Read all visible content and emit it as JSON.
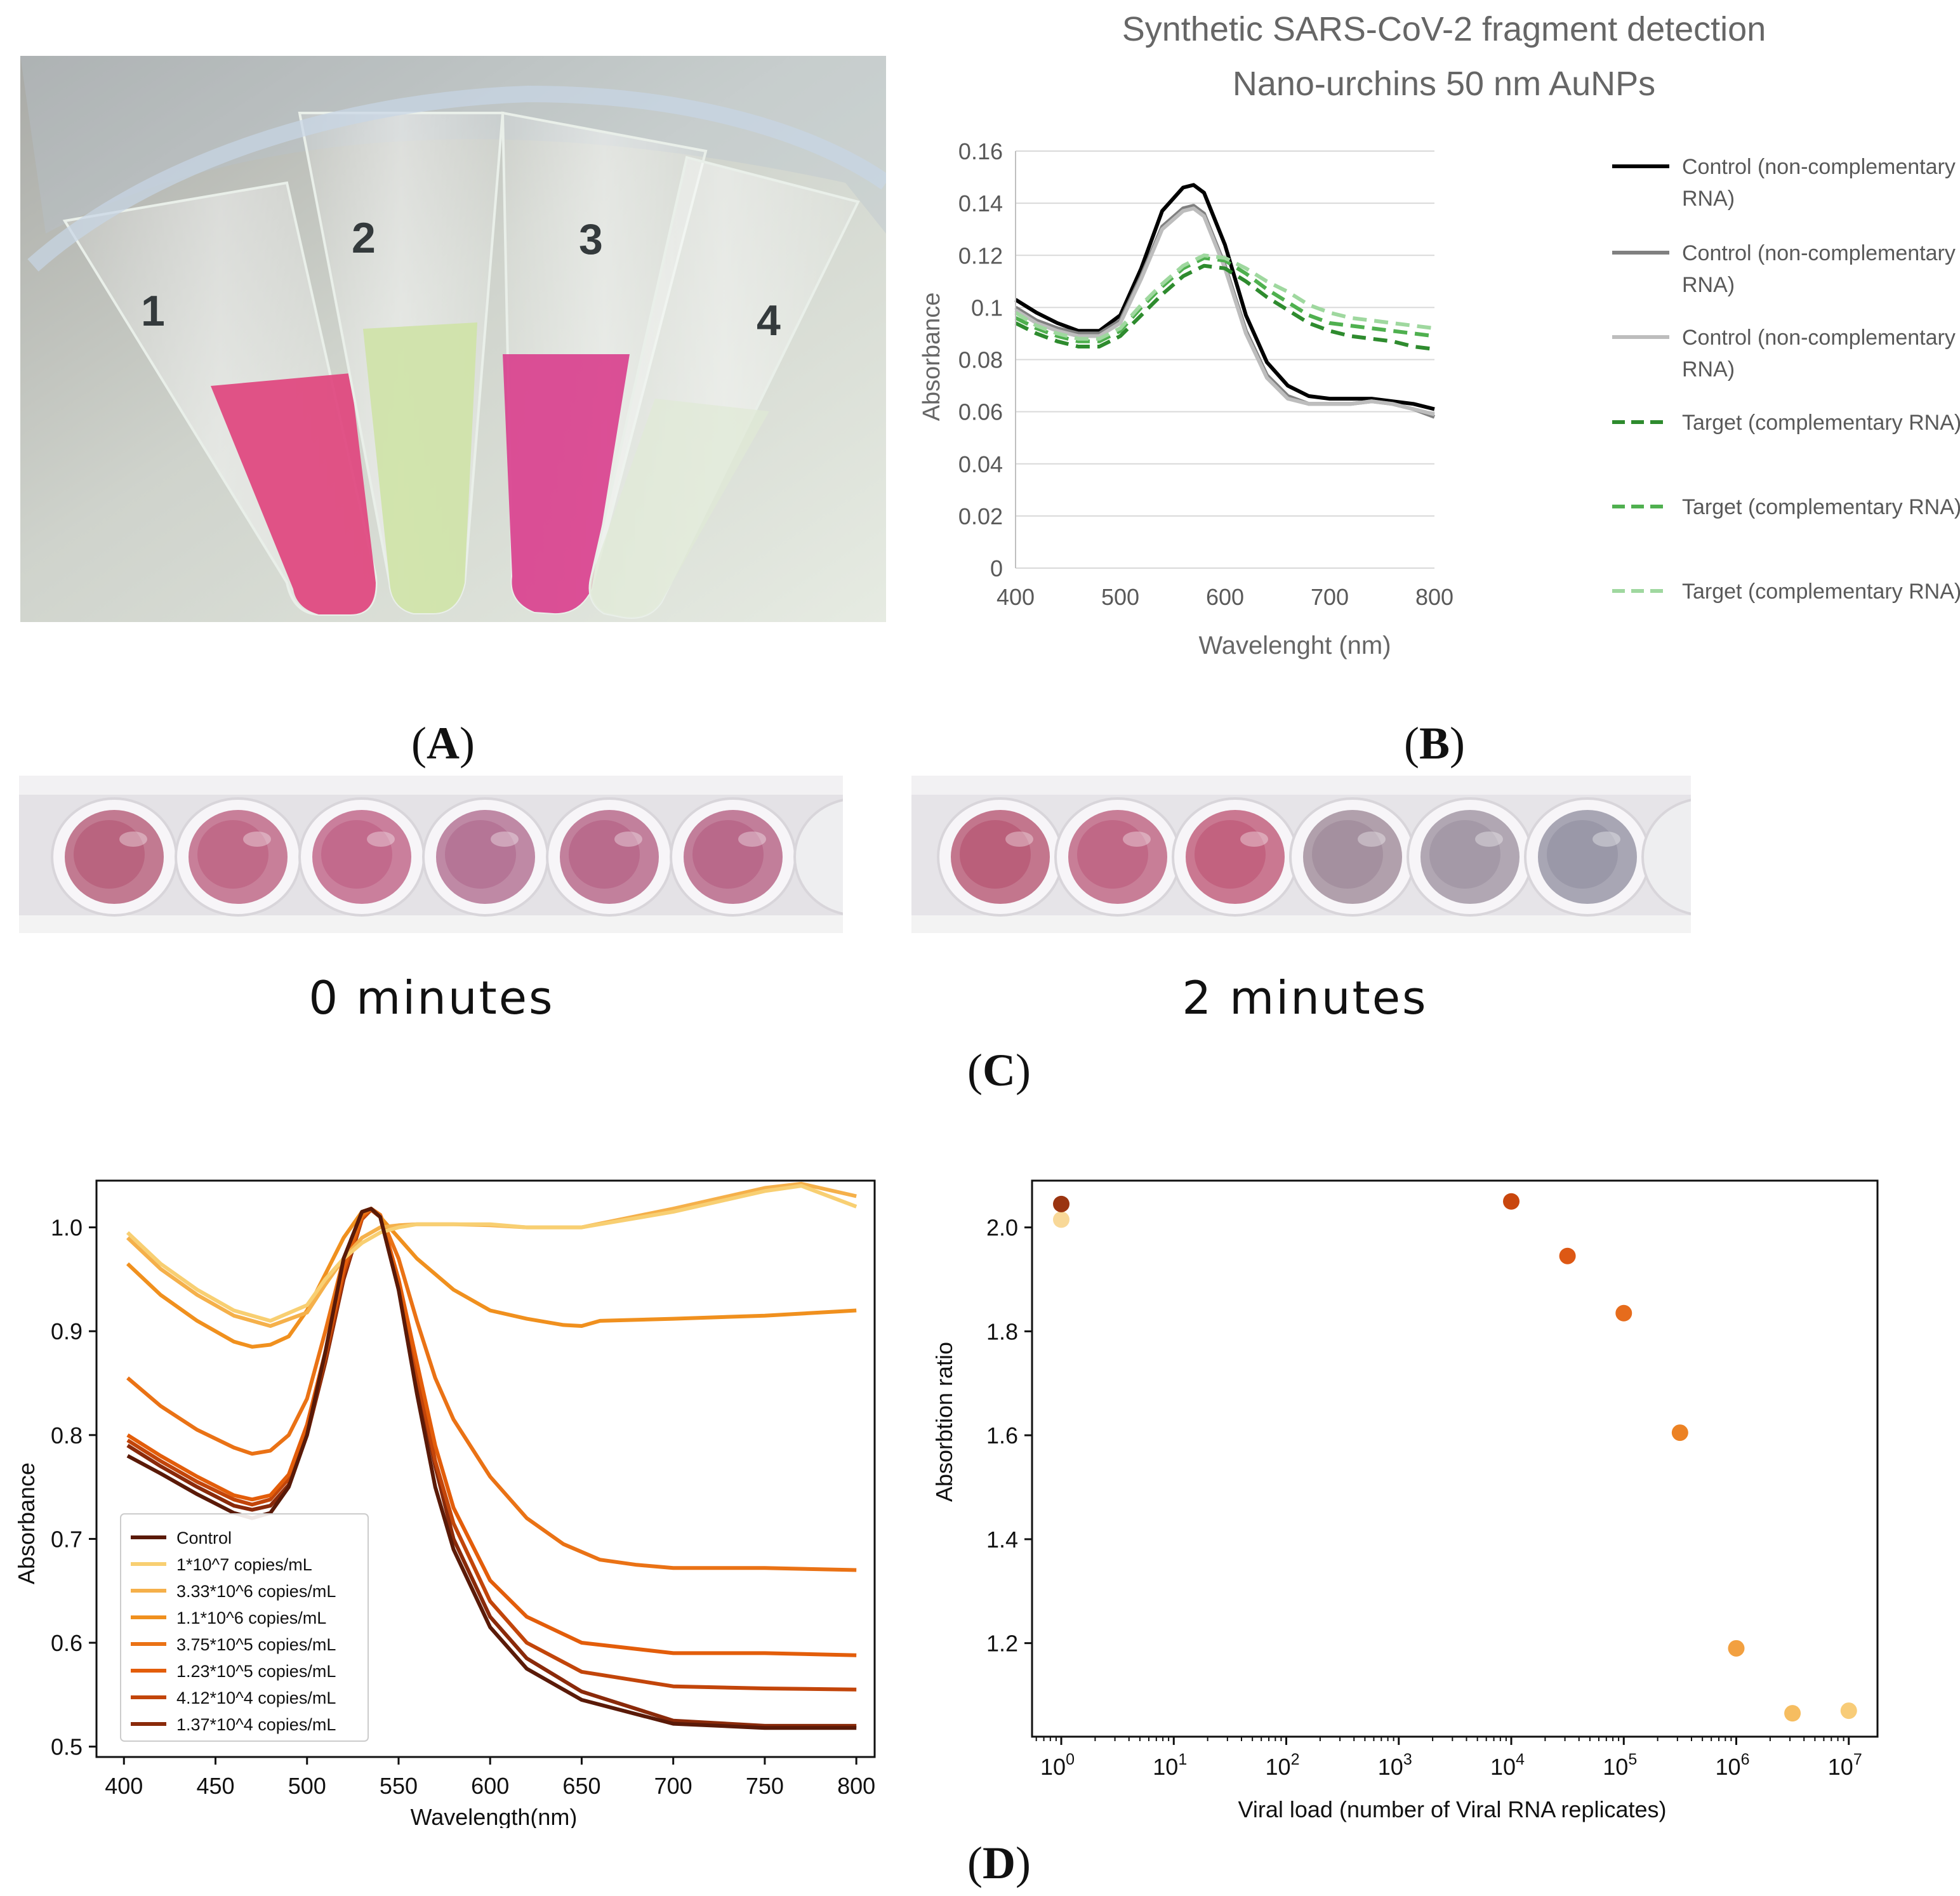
{
  "labels": {
    "A": "A",
    "B": "B",
    "C": "C",
    "D": "D"
  },
  "tubes": [
    {
      "label": "1",
      "color": "#e0457e"
    },
    {
      "label": "2",
      "color": "#cfe3a8"
    },
    {
      "label": "3",
      "color": "#d9418e"
    },
    {
      "label": "4",
      "color": "#dfe9d6"
    }
  ],
  "wells": {
    "t0": {
      "caption": "0 minutes",
      "colors": [
        "#b9647f",
        "#c06a88",
        "#c26a8c",
        "#b57596",
        "#b96b8c",
        "#b9698a"
      ]
    },
    "t2": {
      "caption": "2 minutes",
      "colors": [
        "#ba5f7a",
        "#c06886",
        "#c2627f",
        "#a4909f",
        "#a499a7",
        "#9a98a8"
      ]
    }
  },
  "chart_data": [
    {
      "id": "B",
      "type": "line",
      "title": "Synthetic SARS-CoV-2 fragment detection",
      "subtitle": "Nano-urchins 50 nm AuNPs",
      "xlabel": "Wavelenght (nm)",
      "ylabel": "Absorbance",
      "xlim": [
        400,
        800
      ],
      "ylim": [
        0,
        0.16
      ],
      "xticks": [
        400,
        500,
        600,
        700,
        800
      ],
      "yticks": [
        0,
        0.02,
        0.04,
        0.06,
        0.08,
        0.1,
        0.12,
        0.14,
        0.16
      ],
      "ytick_labels": [
        "0",
        "0.02",
        "0.04",
        "0.06",
        "0.08",
        "0.1",
        "0.12",
        "0.14",
        "0.16"
      ],
      "grid": true,
      "legend": "right",
      "series": [
        {
          "name": "Control (non-complementary RNA)",
          "color": "#000000",
          "dash": false,
          "x": [
            400,
            420,
            440,
            460,
            480,
            500,
            520,
            540,
            560,
            570,
            580,
            600,
            620,
            640,
            660,
            680,
            700,
            720,
            740,
            760,
            780,
            800
          ],
          "y": [
            0.103,
            0.098,
            0.094,
            0.091,
            0.091,
            0.097,
            0.115,
            0.137,
            0.146,
            0.147,
            0.144,
            0.124,
            0.097,
            0.079,
            0.07,
            0.066,
            0.065,
            0.065,
            0.065,
            0.064,
            0.063,
            0.061
          ]
        },
        {
          "name": "Control (non-complementary RNA)",
          "color": "#808080",
          "dash": false,
          "x": [
            400,
            420,
            440,
            460,
            480,
            500,
            520,
            540,
            560,
            570,
            580,
            600,
            620,
            640,
            660,
            680,
            700,
            720,
            740,
            760,
            780,
            800
          ],
          "y": [
            0.1,
            0.095,
            0.092,
            0.09,
            0.09,
            0.095,
            0.112,
            0.131,
            0.138,
            0.139,
            0.136,
            0.116,
            0.091,
            0.074,
            0.066,
            0.063,
            0.063,
            0.063,
            0.064,
            0.063,
            0.061,
            0.058
          ]
        },
        {
          "name": "Control (non-complementary RNA)",
          "color": "#bdbdbd",
          "dash": false,
          "x": [
            400,
            420,
            440,
            460,
            480,
            500,
            520,
            540,
            560,
            570,
            580,
            600,
            620,
            640,
            660,
            680,
            700,
            720,
            740,
            760,
            780,
            800
          ],
          "y": [
            0.099,
            0.094,
            0.091,
            0.089,
            0.089,
            0.094,
            0.111,
            0.13,
            0.137,
            0.138,
            0.135,
            0.115,
            0.09,
            0.073,
            0.065,
            0.063,
            0.063,
            0.063,
            0.064,
            0.063,
            0.061,
            0.059
          ]
        },
        {
          "name": "Target (complementary RNA)",
          "color": "#2e8b2e",
          "dash": true,
          "x": [
            400,
            420,
            440,
            460,
            480,
            500,
            520,
            540,
            560,
            580,
            600,
            620,
            640,
            660,
            680,
            700,
            720,
            740,
            760,
            780,
            800
          ],
          "y": [
            0.094,
            0.09,
            0.087,
            0.085,
            0.085,
            0.089,
            0.097,
            0.105,
            0.112,
            0.116,
            0.115,
            0.11,
            0.104,
            0.099,
            0.094,
            0.091,
            0.089,
            0.088,
            0.087,
            0.085,
            0.084
          ]
        },
        {
          "name": "Target (complementary RNA)",
          "color": "#4fb04f",
          "dash": true,
          "x": [
            400,
            420,
            440,
            460,
            480,
            500,
            520,
            540,
            560,
            580,
            600,
            620,
            640,
            660,
            680,
            700,
            720,
            740,
            760,
            780,
            800
          ],
          "y": [
            0.096,
            0.092,
            0.089,
            0.087,
            0.087,
            0.091,
            0.1,
            0.108,
            0.115,
            0.119,
            0.118,
            0.113,
            0.107,
            0.102,
            0.097,
            0.094,
            0.093,
            0.092,
            0.091,
            0.09,
            0.089
          ]
        },
        {
          "name": "Target (complementary RNA)",
          "color": "#9fd89f",
          "dash": true,
          "x": [
            400,
            420,
            440,
            460,
            480,
            500,
            520,
            540,
            560,
            580,
            600,
            620,
            640,
            660,
            680,
            700,
            720,
            740,
            760,
            780,
            800
          ],
          "y": [
            0.098,
            0.093,
            0.09,
            0.088,
            0.088,
            0.092,
            0.101,
            0.109,
            0.116,
            0.12,
            0.119,
            0.115,
            0.11,
            0.106,
            0.101,
            0.098,
            0.096,
            0.095,
            0.094,
            0.093,
            0.092
          ]
        }
      ]
    },
    {
      "id": "D-left",
      "type": "line",
      "xlabel": "Wavelength(nm)",
      "ylabel": "Absorbance",
      "xlim": [
        385,
        810
      ],
      "ylim": [
        0.49,
        1.045
      ],
      "xticks": [
        400,
        450,
        500,
        550,
        600,
        650,
        700,
        750,
        800
      ],
      "yticks": [
        0.5,
        0.6,
        0.7,
        0.8,
        0.9,
        1.0
      ],
      "ytick_labels": [
        "0.5",
        "0.6",
        "0.7",
        "0.8",
        "0.9",
        "1.0"
      ],
      "grid": false,
      "legend": "bottom-left",
      "series": [
        {
          "name": "Control",
          "color": "#5a1a08",
          "x": [
            402,
            420,
            440,
            460,
            470,
            480,
            490,
            500,
            510,
            520,
            530,
            535,
            540,
            550,
            560,
            570,
            580,
            600,
            620,
            650,
            700,
            750,
            800
          ],
          "y": [
            0.78,
            0.763,
            0.743,
            0.725,
            0.72,
            0.725,
            0.75,
            0.8,
            0.88,
            0.97,
            1.015,
            1.018,
            1.01,
            0.94,
            0.84,
            0.75,
            0.69,
            0.615,
            0.575,
            0.545,
            0.522,
            0.518,
            0.518
          ]
        },
        {
          "name": "1*10^7 copies/mL",
          "color": "#f8cf72",
          "x": [
            402,
            420,
            440,
            460,
            480,
            500,
            510,
            520,
            530,
            540,
            550,
            560,
            580,
            600,
            620,
            650,
            700,
            750,
            770,
            800
          ],
          "y": [
            0.995,
            0.965,
            0.94,
            0.92,
            0.91,
            0.925,
            0.95,
            0.97,
            0.985,
            0.995,
            1.0,
            1.003,
            1.003,
            1.003,
            1.0,
            1.0,
            1.015,
            1.035,
            1.04,
            1.02
          ]
        },
        {
          "name": "3.33*10^6 copies/mL",
          "color": "#f5b04a",
          "x": [
            402,
            420,
            440,
            460,
            480,
            500,
            510,
            520,
            530,
            540,
            550,
            560,
            580,
            600,
            620,
            650,
            700,
            750,
            770,
            800
          ],
          "y": [
            0.99,
            0.96,
            0.935,
            0.915,
            0.905,
            0.918,
            0.945,
            0.97,
            0.99,
            1.0,
            1.002,
            1.003,
            1.003,
            1.002,
            1.0,
            1.0,
            1.018,
            1.038,
            1.042,
            1.03
          ]
        },
        {
          "name": "1.1*10^6 copies/mL",
          "color": "#f0901e",
          "x": [
            402,
            420,
            440,
            460,
            470,
            480,
            490,
            500,
            510,
            520,
            530,
            535,
            540,
            550,
            560,
            580,
            600,
            620,
            640,
            650,
            660,
            700,
            750,
            800
          ],
          "y": [
            0.965,
            0.935,
            0.91,
            0.89,
            0.885,
            0.887,
            0.895,
            0.92,
            0.955,
            0.99,
            1.015,
            1.018,
            1.01,
            0.99,
            0.97,
            0.94,
            0.92,
            0.912,
            0.906,
            0.905,
            0.91,
            0.912,
            0.915,
            0.92
          ]
        },
        {
          "name": "3.75*10^5 copies/mL",
          "color": "#ea7215",
          "x": [
            402,
            420,
            440,
            460,
            470,
            480,
            490,
            500,
            510,
            520,
            530,
            535,
            540,
            550,
            560,
            570,
            580,
            600,
            620,
            640,
            660,
            680,
            700,
            750,
            800
          ],
          "y": [
            0.855,
            0.828,
            0.805,
            0.788,
            0.782,
            0.785,
            0.8,
            0.835,
            0.9,
            0.97,
            1.012,
            1.018,
            1.012,
            0.97,
            0.91,
            0.855,
            0.815,
            0.76,
            0.72,
            0.695,
            0.68,
            0.675,
            0.672,
            0.672,
            0.67
          ]
        },
        {
          "name": "1.23*10^5 copies/mL",
          "color": "#e35d0a",
          "x": [
            402,
            420,
            440,
            460,
            470,
            480,
            490,
            500,
            510,
            520,
            530,
            535,
            540,
            550,
            560,
            570,
            580,
            600,
            620,
            650,
            700,
            750,
            800
          ],
          "y": [
            0.8,
            0.78,
            0.76,
            0.742,
            0.738,
            0.742,
            0.762,
            0.81,
            0.88,
            0.96,
            1.01,
            1.018,
            1.012,
            0.95,
            0.87,
            0.79,
            0.73,
            0.66,
            0.625,
            0.6,
            0.59,
            0.59,
            0.588
          ]
        },
        {
          "name": "4.12*10^4 copies/mL",
          "color": "#c2450a",
          "x": [
            402,
            420,
            440,
            460,
            470,
            480,
            490,
            500,
            510,
            520,
            530,
            535,
            540,
            550,
            560,
            570,
            580,
            600,
            620,
            650,
            700,
            750,
            800
          ],
          "y": [
            0.795,
            0.775,
            0.755,
            0.738,
            0.733,
            0.738,
            0.758,
            0.805,
            0.875,
            0.955,
            1.008,
            1.017,
            1.01,
            0.945,
            0.86,
            0.775,
            0.715,
            0.64,
            0.6,
            0.572,
            0.558,
            0.556,
            0.555
          ]
        },
        {
          "name": "1.37*10^4 copies/mL",
          "color": "#8a2a0a",
          "x": [
            402,
            420,
            440,
            460,
            470,
            480,
            490,
            500,
            510,
            520,
            530,
            535,
            540,
            550,
            560,
            570,
            580,
            600,
            620,
            650,
            700,
            750,
            800
          ],
          "y": [
            0.79,
            0.77,
            0.75,
            0.732,
            0.728,
            0.732,
            0.752,
            0.8,
            0.87,
            0.95,
            1.008,
            1.017,
            1.01,
            0.94,
            0.855,
            0.77,
            0.7,
            0.625,
            0.585,
            0.553,
            0.525,
            0.52,
            0.52
          ]
        }
      ]
    },
    {
      "id": "D-right",
      "type": "scatter",
      "xscale": "log",
      "xlabel": "Viral load (number  of Viral RNA replicates)",
      "ylabel": "Absorbtion ratio",
      "xlim": [
        0.55,
        18000000
      ],
      "ylim": [
        1.02,
        2.09
      ],
      "xticks": [
        1,
        10,
        100,
        1000,
        10000,
        100000,
        1000000,
        10000000
      ],
      "xtick_exponents": [
        "0",
        "1",
        "2",
        "3",
        "4",
        "5",
        "6",
        "7"
      ],
      "yticks": [
        1.2,
        1.4,
        1.6,
        1.8,
        2.0
      ],
      "ytick_labels": [
        "1.2",
        "1.4",
        "1.6",
        "1.8",
        "2.0"
      ],
      "grid": false,
      "points": [
        {
          "x": 1,
          "y": 2.015,
          "color": "#f8d898"
        },
        {
          "x": 1,
          "y": 2.045,
          "color": "#9a3410"
        },
        {
          "x": 10000,
          "y": 2.05,
          "color": "#c9460d"
        },
        {
          "x": 31600,
          "y": 1.945,
          "color": "#dd5814"
        },
        {
          "x": 100000,
          "y": 1.835,
          "color": "#e66c1c"
        },
        {
          "x": 316000,
          "y": 1.605,
          "color": "#ec8224"
        },
        {
          "x": 1000000,
          "y": 1.19,
          "color": "#f2a040"
        },
        {
          "x": 3160000,
          "y": 1.065,
          "color": "#f6bd60"
        },
        {
          "x": 10000000,
          "y": 1.07,
          "color": "#f8cc78"
        }
      ]
    }
  ]
}
